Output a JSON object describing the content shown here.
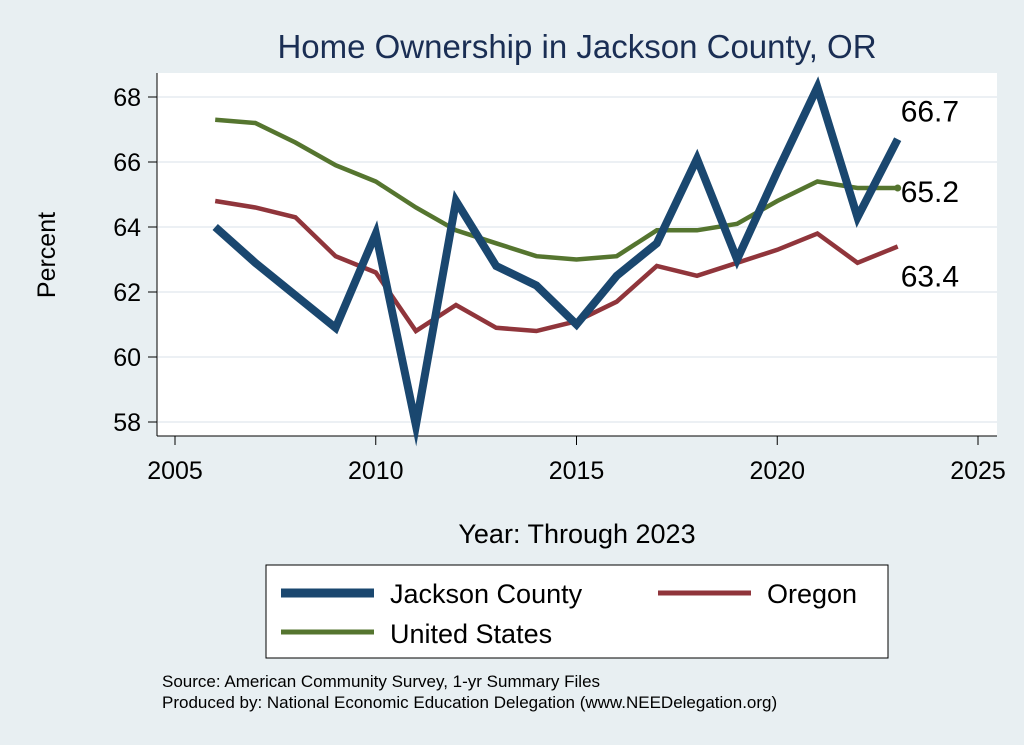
{
  "chart_data": {
    "type": "line",
    "title": "Home Ownership in Jackson County, OR",
    "xlabel": "Year: Through 2023",
    "ylabel": "Percent",
    "xlim": [
      2005,
      2025
    ],
    "ylim": [
      57.7,
      68.7
    ],
    "xticks": [
      2005,
      2010,
      2015,
      2020,
      2025
    ],
    "yticks": [
      58,
      60,
      62,
      64,
      66,
      68
    ],
    "grid": "horizontal",
    "x": [
      2006,
      2007,
      2008,
      2009,
      2010,
      2011,
      2012,
      2013,
      2014,
      2015,
      2016,
      2017,
      2018,
      2019,
      2020,
      2021,
      2022,
      2023
    ],
    "series": [
      {
        "name": "Jackson County",
        "color": "#1a476f",
        "values": [
          64.0,
          62.9,
          61.9,
          60.9,
          63.8,
          57.9,
          64.8,
          62.8,
          62.2,
          61.0,
          62.5,
          63.5,
          66.1,
          63.0,
          65.7,
          68.3,
          64.3,
          66.7
        ],
        "end_label": "66.7"
      },
      {
        "name": "Oregon",
        "color": "#90353b",
        "values": [
          64.8,
          64.6,
          64.3,
          63.1,
          62.6,
          60.8,
          61.6,
          60.9,
          60.8,
          61.1,
          61.7,
          62.8,
          62.5,
          62.9,
          63.3,
          63.8,
          62.9,
          63.4
        ],
        "end_label": "63.4"
      },
      {
        "name": "United States",
        "color": "#55752f",
        "values": [
          67.3,
          67.2,
          66.6,
          65.9,
          65.4,
          64.6,
          63.9,
          63.5,
          63.1,
          63.0,
          63.1,
          63.9,
          63.9,
          64.1,
          64.8,
          65.4,
          65.2,
          65.2
        ],
        "end_label": "65.2"
      }
    ],
    "legend_position": "bottom"
  },
  "footer": {
    "source": "Source: American Community Survey, 1-yr Summary Files",
    "produced_by": "Produced by: National Economic Education Delegation (www.NEEDelegation.org)"
  },
  "colors": {
    "background": "#e8eff2",
    "plot_background": "#ffffff",
    "grid": "#e5ecf0",
    "title": "#1a2e54"
  }
}
